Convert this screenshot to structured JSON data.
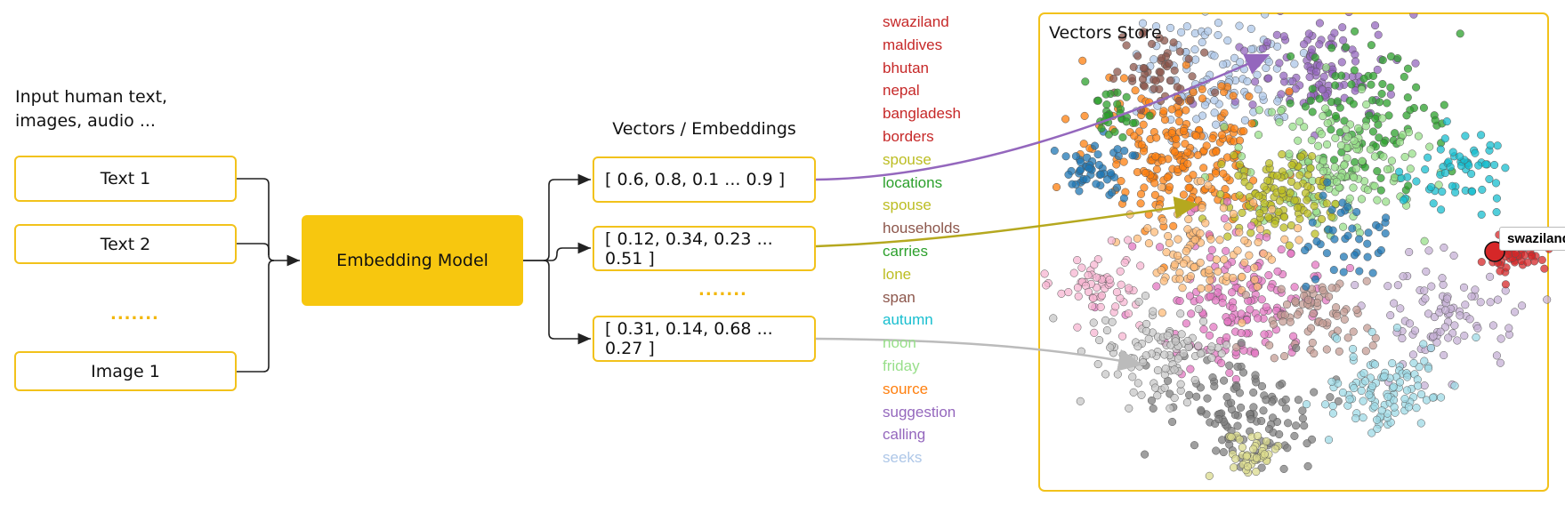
{
  "input_label": "Input human text, images, audio ...",
  "inputs": [
    "Text 1",
    "Text 2",
    "Image 1"
  ],
  "inputs_gap": ".......",
  "model": "Embedding Model",
  "vectors_title": "Vectors / Embeddings",
  "vectors": [
    "[ 0.6, 0.8, 0.1 ... 0.9 ]",
    "[ 0.12, 0.34, 0.23 ... 0.51 ]",
    "[ 0.31, 0.14, 0.68 ... 0.27 ]"
  ],
  "vectors_gap": ".......",
  "words": [
    {
      "label": "swaziland",
      "color": "#c62828"
    },
    {
      "label": "maldives",
      "color": "#c62828"
    },
    {
      "label": "bhutan",
      "color": "#c62828"
    },
    {
      "label": "nepal",
      "color": "#c62828"
    },
    {
      "label": "bangladesh",
      "color": "#c62828"
    },
    {
      "label": "borders",
      "color": "#c62828"
    },
    {
      "label": "spouse",
      "color": "#bcbd22"
    },
    {
      "label": "locations",
      "color": "#2ca02c"
    },
    {
      "label": "spouse",
      "color": "#bcbd22"
    },
    {
      "label": "households",
      "color": "#8c564b"
    },
    {
      "label": "carries",
      "color": "#2ca02c"
    },
    {
      "label": "lone",
      "color": "#bcbd22"
    },
    {
      "label": "span",
      "color": "#8c564b"
    },
    {
      "label": "autumn",
      "color": "#17becf"
    },
    {
      "label": "noon",
      "color": "#98df8a"
    },
    {
      "label": "friday",
      "color": "#98df8a"
    },
    {
      "label": "source",
      "color": "#ff7f0e"
    },
    {
      "label": "suggestion",
      "color": "#9467bd"
    },
    {
      "label": "calling",
      "color": "#9467bd"
    },
    {
      "label": "seeks",
      "color": "#aec7e8"
    }
  ],
  "store_title": "Vectors Store",
  "highlight": "swaziland"
}
